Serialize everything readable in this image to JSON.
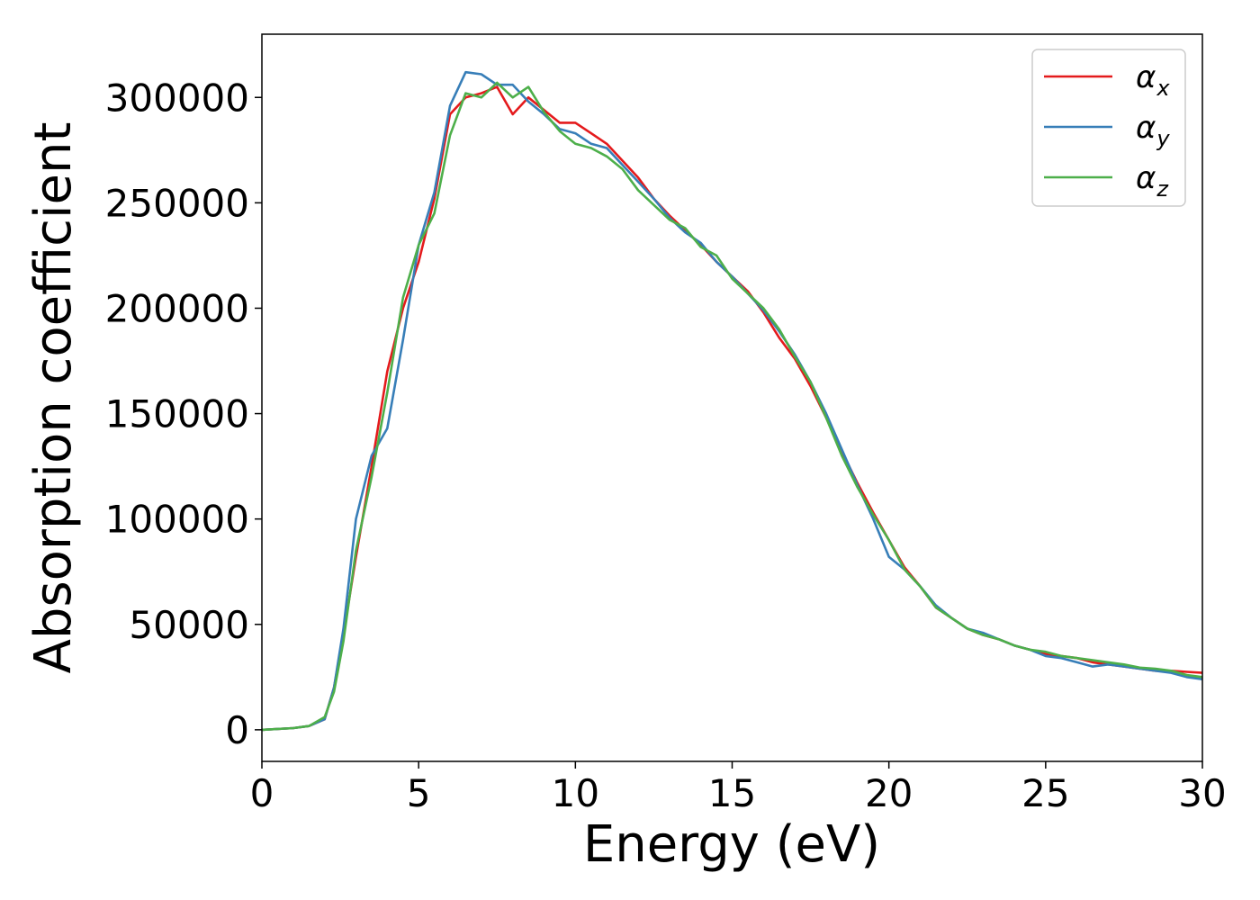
{
  "chart_data": {
    "type": "line",
    "title": "",
    "xlabel": "Energy (eV)",
    "ylabel": "Absorption coefficient",
    "xlim": [
      0,
      30
    ],
    "ylim": [
      -15000,
      330000
    ],
    "xticks": [
      0,
      5,
      10,
      15,
      20,
      25,
      30
    ],
    "xtick_labels": [
      "0",
      "5",
      "10",
      "15",
      "20",
      "25",
      "30"
    ],
    "yticks": [
      0,
      50000,
      100000,
      150000,
      200000,
      250000,
      300000
    ],
    "ytick_labels": [
      "0",
      "50000",
      "100000",
      "150000",
      "200000",
      "250000",
      "300000"
    ],
    "grid": false,
    "legend_position": "top-right",
    "x": [
      0,
      1,
      1.5,
      2,
      2.3,
      2.6,
      3,
      3.5,
      4,
      4.5,
      5,
      5.5,
      6,
      6.5,
      7,
      7.5,
      8,
      8.5,
      9,
      9.5,
      10,
      10.5,
      11,
      11.5,
      12,
      12.5,
      13,
      13.5,
      14,
      14.5,
      15,
      15.5,
      16,
      16.5,
      17,
      17.5,
      18,
      18.5,
      19,
      19.5,
      20,
      20.5,
      21,
      21.5,
      22,
      22.5,
      23,
      23.5,
      24,
      24.5,
      25,
      25.5,
      26,
      26.5,
      27,
      27.5,
      28,
      28.5,
      29,
      29.5,
      30
    ],
    "series": [
      {
        "name": "α_x",
        "label_base": "α",
        "label_sub": "x",
        "color": "#e41a1c",
        "values": [
          0,
          800,
          1800,
          5000,
          20000,
          45000,
          82000,
          125000,
          170000,
          200000,
          222000,
          252000,
          292000,
          300000,
          302000,
          305000,
          292000,
          300000,
          294000,
          288000,
          288000,
          283000,
          278000,
          270000,
          262000,
          252000,
          244000,
          237000,
          230000,
          222000,
          215000,
          208000,
          198000,
          186000,
          176000,
          163000,
          148000,
          132000,
          117000,
          103000,
          90000,
          77000,
          68000,
          58000,
          53000,
          48000,
          45000,
          43000,
          40000,
          38000,
          36000,
          35000,
          34000,
          32000,
          31000,
          30000,
          29000,
          28000,
          28000,
          27500,
          27000
        ]
      },
      {
        "name": "α_y",
        "label_base": "α",
        "label_sub": "y",
        "color": "#377eb8",
        "values": [
          0,
          800,
          1800,
          5000,
          20000,
          48000,
          100000,
          130000,
          143000,
          185000,
          230000,
          255000,
          296000,
          312000,
          311000,
          306000,
          306000,
          298000,
          292000,
          285000,
          283000,
          278000,
          276000,
          268000,
          260000,
          252000,
          243000,
          236000,
          231000,
          222000,
          215000,
          207000,
          199000,
          189000,
          178000,
          165000,
          150000,
          133000,
          116000,
          100000,
          82000,
          76000,
          68000,
          59000,
          53000,
          48000,
          46000,
          43000,
          40000,
          38000,
          35000,
          34000,
          32000,
          30000,
          31000,
          30000,
          29000,
          28000,
          27000,
          25000,
          24000
        ]
      },
      {
        "name": "α_z",
        "label_base": "α",
        "label_sub": "z",
        "color": "#4daf4a",
        "values": [
          0,
          800,
          1800,
          6000,
          18000,
          42000,
          85000,
          120000,
          160000,
          205000,
          230000,
          245000,
          282000,
          302000,
          300000,
          307000,
          300000,
          305000,
          293000,
          284000,
          278000,
          276000,
          272000,
          266000,
          256000,
          249000,
          242000,
          238000,
          229000,
          225000,
          214000,
          207000,
          200000,
          190000,
          177000,
          165000,
          148000,
          130000,
          115000,
          102000,
          90000,
          76000,
          68000,
          58000,
          53000,
          48000,
          45000,
          43000,
          40000,
          38000,
          37000,
          35000,
          34000,
          33000,
          32000,
          31000,
          29500,
          29000,
          28000,
          26000,
          25000
        ]
      }
    ]
  }
}
